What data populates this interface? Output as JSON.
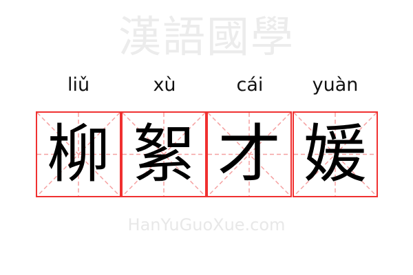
{
  "watermark": {
    "title": "漢語國學",
    "url": "HanYuGuoXue.com"
  },
  "colors": {
    "border": "#f03030",
    "guide": "#f5a0a0"
  },
  "characters": [
    {
      "char": "柳",
      "pinyin": "liǔ"
    },
    {
      "char": "絮",
      "pinyin": "xù"
    },
    {
      "char": "才",
      "pinyin": "cái"
    },
    {
      "char": "媛",
      "pinyin": "yuàn"
    }
  ]
}
